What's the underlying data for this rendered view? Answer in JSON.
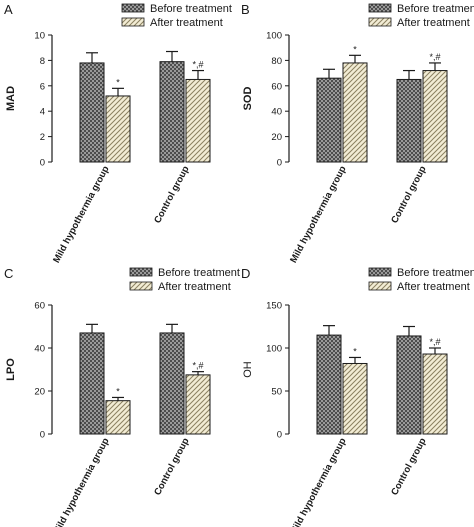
{
  "chart_data": [
    {
      "panel": "A",
      "type": "bar",
      "ylabel": "MAD",
      "ylabel_bold": true,
      "ylim": [
        0,
        10
      ],
      "yticks": [
        "0",
        "2",
        "4",
        "6",
        "8",
        "10"
      ],
      "categories": [
        "Mild hypothermia group",
        "Control group"
      ],
      "series": [
        {
          "name": "Before treatment",
          "values": [
            7.8,
            7.9
          ],
          "errors": [
            0.8,
            0.8
          ]
        },
        {
          "name": "After treatment",
          "values": [
            5.2,
            6.5
          ],
          "errors": [
            0.6,
            0.7
          ]
        }
      ],
      "annotations": [
        {
          "series": 1,
          "category": 0,
          "text": "*"
        },
        {
          "series": 1,
          "category": 1,
          "text": "*,#"
        }
      ],
      "legend": "top-right"
    },
    {
      "panel": "B",
      "type": "bar",
      "ylabel": "SOD",
      "ylabel_bold": true,
      "ylim": [
        0,
        100
      ],
      "yticks": [
        "0",
        "20",
        "40",
        "60",
        "80",
        "100"
      ],
      "categories": [
        "Mild hypothermia group",
        "Control group"
      ],
      "series": [
        {
          "name": "Before treatment",
          "values": [
            66,
            65
          ],
          "errors": [
            7,
            7
          ]
        },
        {
          "name": "After treatment",
          "values": [
            78,
            72
          ],
          "errors": [
            6,
            6
          ]
        }
      ],
      "annotations": [
        {
          "series": 1,
          "category": 0,
          "text": "*"
        },
        {
          "series": 1,
          "category": 1,
          "text": "*,#"
        }
      ],
      "legend": "top-right"
    },
    {
      "panel": "C",
      "type": "bar",
      "ylabel": "LPO",
      "ylabel_bold": true,
      "ylim": [
        0,
        60
      ],
      "yticks": [
        "0",
        "20",
        "40",
        "60"
      ],
      "categories": [
        "Mild hypothermia group",
        "Control group"
      ],
      "series": [
        {
          "name": "Before treatment",
          "values": [
            47,
            47
          ],
          "errors": [
            4,
            4
          ]
        },
        {
          "name": "After treatment",
          "values": [
            15.5,
            27.5
          ],
          "errors": [
            1.5,
            1.5
          ]
        }
      ],
      "annotations": [
        {
          "series": 1,
          "category": 0,
          "text": "*"
        },
        {
          "series": 1,
          "category": 1,
          "text": "*,#"
        }
      ],
      "legend": "top-right"
    },
    {
      "panel": "D",
      "type": "bar",
      "ylabel": "OH",
      "ylabel_bold": false,
      "ylim": [
        0,
        150
      ],
      "yticks": [
        "0",
        "50",
        "100",
        "150"
      ],
      "categories": [
        "Mild hypothermia group",
        "Control group"
      ],
      "series": [
        {
          "name": "Before treatment",
          "values": [
            115,
            114
          ],
          "errors": [
            11,
            11
          ]
        },
        {
          "name": "After treatment",
          "values": [
            82,
            93
          ],
          "errors": [
            7,
            7
          ]
        }
      ],
      "annotations": [
        {
          "series": 1,
          "category": 0,
          "text": "*"
        },
        {
          "series": 1,
          "category": 1,
          "text": "*,#"
        }
      ],
      "legend": "top-right"
    }
  ]
}
